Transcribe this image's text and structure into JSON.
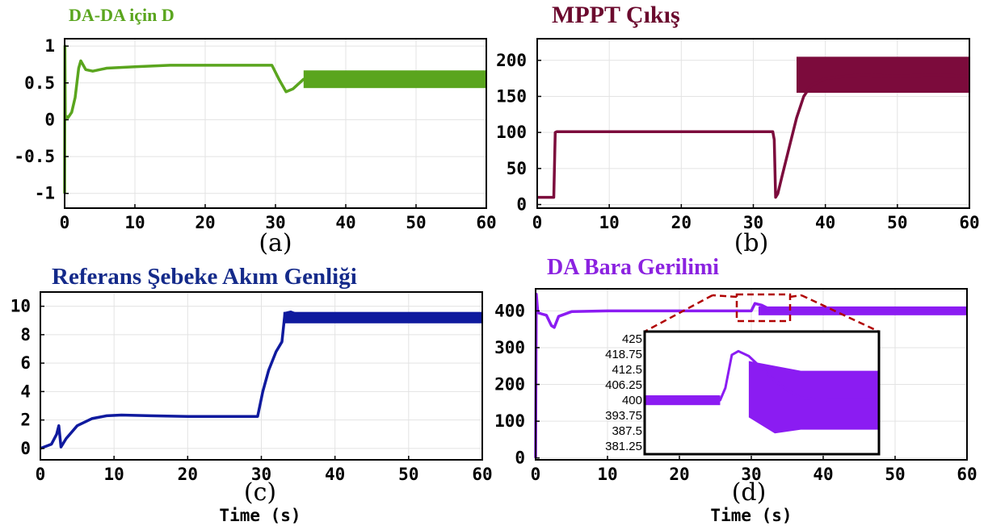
{
  "chart_data": [
    {
      "id": "a",
      "type": "line",
      "title": "DA-DA için D",
      "panel_label": "(a)",
      "xlabel": "",
      "ylabel": "",
      "xlim": [
        0,
        60
      ],
      "ylim": [
        -1.2,
        1.1
      ],
      "xticks": [
        "0",
        "10",
        "20",
        "30",
        "40",
        "50",
        "60"
      ],
      "xtick_values": [
        0,
        10,
        20,
        30,
        40,
        50,
        60
      ],
      "yticks": [
        "1",
        "0.5",
        "0",
        "-0.5",
        "-1"
      ],
      "ytick_values": [
        1,
        0.5,
        0,
        -0.5,
        -1
      ],
      "grid": true,
      "color": "#5aa51e",
      "title_color": "#5aa51e",
      "x": [
        0,
        0.05,
        0.1,
        0.2,
        0.5,
        1,
        1.5,
        2,
        2.3,
        2.6,
        3,
        4,
        6,
        10,
        15,
        20,
        25,
        29.5,
        30.5,
        31.5,
        32.5,
        34,
        40,
        50,
        60
      ],
      "y": [
        -1,
        1,
        0,
        0.05,
        0.03,
        0.1,
        0.3,
        0.7,
        0.8,
        0.75,
        0.68,
        0.66,
        0.7,
        0.72,
        0.74,
        0.74,
        0.74,
        0.74,
        0.55,
        0.38,
        0.42,
        0.55,
        0.55,
        0.55,
        0.55
      ],
      "band": {
        "x_start": 34,
        "x_end": 60,
        "low": 0.43,
        "high": 0.67
      }
    },
    {
      "id": "b",
      "type": "line",
      "title": "MPPT Çıkış",
      "panel_label": "(b)",
      "xlabel": "",
      "ylabel": "",
      "xlim": [
        0,
        60
      ],
      "ylim": [
        -5,
        230
      ],
      "xticks": [
        "0",
        "10",
        "20",
        "30",
        "40",
        "50",
        "60"
      ],
      "xtick_values": [
        0,
        10,
        20,
        30,
        40,
        50,
        60
      ],
      "yticks": [
        "200",
        "150",
        "100",
        "50",
        "0"
      ],
      "ytick_values": [
        200,
        150,
        100,
        50,
        0
      ],
      "grid": true,
      "color": "#7c0b3c",
      "title_color": "#6b0a2e",
      "x": [
        0,
        2.3,
        2.5,
        2.7,
        10,
        20,
        30,
        32.7,
        32.9,
        33.1,
        33.4,
        34,
        35,
        36,
        37,
        38,
        40,
        45,
        50,
        55,
        60
      ],
      "y": [
        10,
        10,
        100,
        101,
        101,
        101,
        101,
        101,
        90,
        10,
        15,
        40,
        80,
        120,
        150,
        165,
        175,
        180,
        178,
        180,
        178
      ],
      "band": {
        "x_start": 36,
        "x_end": 60,
        "low": 155,
        "high": 205
      }
    },
    {
      "id": "c",
      "type": "line",
      "title": "Referans Şebeke Akım Genliği",
      "panel_label": "(c)",
      "xlabel": "Time (s)",
      "ylabel": "",
      "xlim": [
        0,
        60
      ],
      "ylim": [
        -0.8,
        11
      ],
      "xticks": [
        "0",
        "10",
        "20",
        "30",
        "40",
        "50",
        "60"
      ],
      "xtick_values": [
        0,
        10,
        20,
        30,
        40,
        50,
        60
      ],
      "yticks": [
        "10",
        "8",
        "6",
        "4",
        "2",
        "0"
      ],
      "ytick_values": [
        10,
        8,
        6,
        4,
        2,
        0
      ],
      "grid": true,
      "color": "#0f1a9e",
      "title_color": "#142a8a",
      "x": [
        0,
        1.5,
        2.2,
        2.5,
        2.8,
        3.5,
        5,
        7,
        9,
        11,
        15,
        20,
        25,
        29.5,
        30.2,
        31,
        32,
        32.8,
        33.2,
        34,
        36,
        40,
        50,
        60
      ],
      "y": [
        0,
        0.3,
        1.0,
        1.6,
        0.1,
        0.7,
        1.6,
        2.1,
        2.3,
        2.35,
        2.3,
        2.25,
        2.25,
        2.25,
        4.0,
        5.5,
        6.8,
        7.5,
        9.5,
        9.6,
        9.2,
        9.1,
        9.1,
        9.1
      ],
      "band": {
        "x_start": 33,
        "x_end": 60,
        "low": 8.8,
        "high": 9.6
      }
    },
    {
      "id": "d",
      "type": "line",
      "title": "DA Bara Gerilimi",
      "panel_label": "(d)",
      "xlabel": "Time (s)",
      "ylabel": "",
      "xlim": [
        0,
        60
      ],
      "ylim": [
        -5,
        460
      ],
      "xticks": [
        "0",
        "10",
        "20",
        "30",
        "40",
        "50",
        "60"
      ],
      "xtick_values": [
        0,
        10,
        20,
        30,
        40,
        50,
        60
      ],
      "yticks": [
        "400",
        "300",
        "200",
        "100",
        "0"
      ],
      "ytick_values": [
        400,
        300,
        200,
        100,
        0
      ],
      "grid": true,
      "color": "#8b1cf2",
      "title_color": "#8b22e0",
      "x": [
        0,
        0.1,
        0.3,
        0.8,
        1.5,
        2.2,
        2.6,
        3.2,
        5,
        10,
        20,
        30,
        30.5,
        31.5,
        32.5,
        34,
        36,
        40,
        50,
        60
      ],
      "y": [
        0,
        445,
        395,
        392,
        388,
        360,
        355,
        385,
        398,
        400,
        400,
        400,
        420,
        415,
        405,
        400,
        400,
        400,
        400,
        400
      ],
      "band": {
        "x_start": 31,
        "x_end": 60,
        "low": 388,
        "high": 412
      },
      "inset": {
        "type": "line",
        "yticks": [
          "425",
          "418.75",
          "412.5",
          "406.25",
          "400",
          "393.75",
          "387.5",
          "381.25"
        ],
        "ytick_values": [
          425,
          418.75,
          412.5,
          406.25,
          400,
          393.75,
          387.5,
          381.25
        ],
        "ylim": [
          378,
          428
        ],
        "xlim": [
          27,
          36
        ],
        "x": [
          27,
          28,
          29,
          29.9,
          30.1,
          30.35,
          30.6,
          31,
          31.5,
          32,
          32.5,
          33,
          34,
          35,
          36
        ],
        "y": [
          400,
          400,
          400,
          400,
          405,
          418.5,
          420,
          418,
          413,
          408,
          404,
          401,
          400,
          400,
          400
        ],
        "band": {
          "x_start": 31,
          "x_end": 36,
          "low": 388,
          "high": 412
        },
        "band_start_low": 393,
        "band_start_high": 416
      }
    }
  ]
}
